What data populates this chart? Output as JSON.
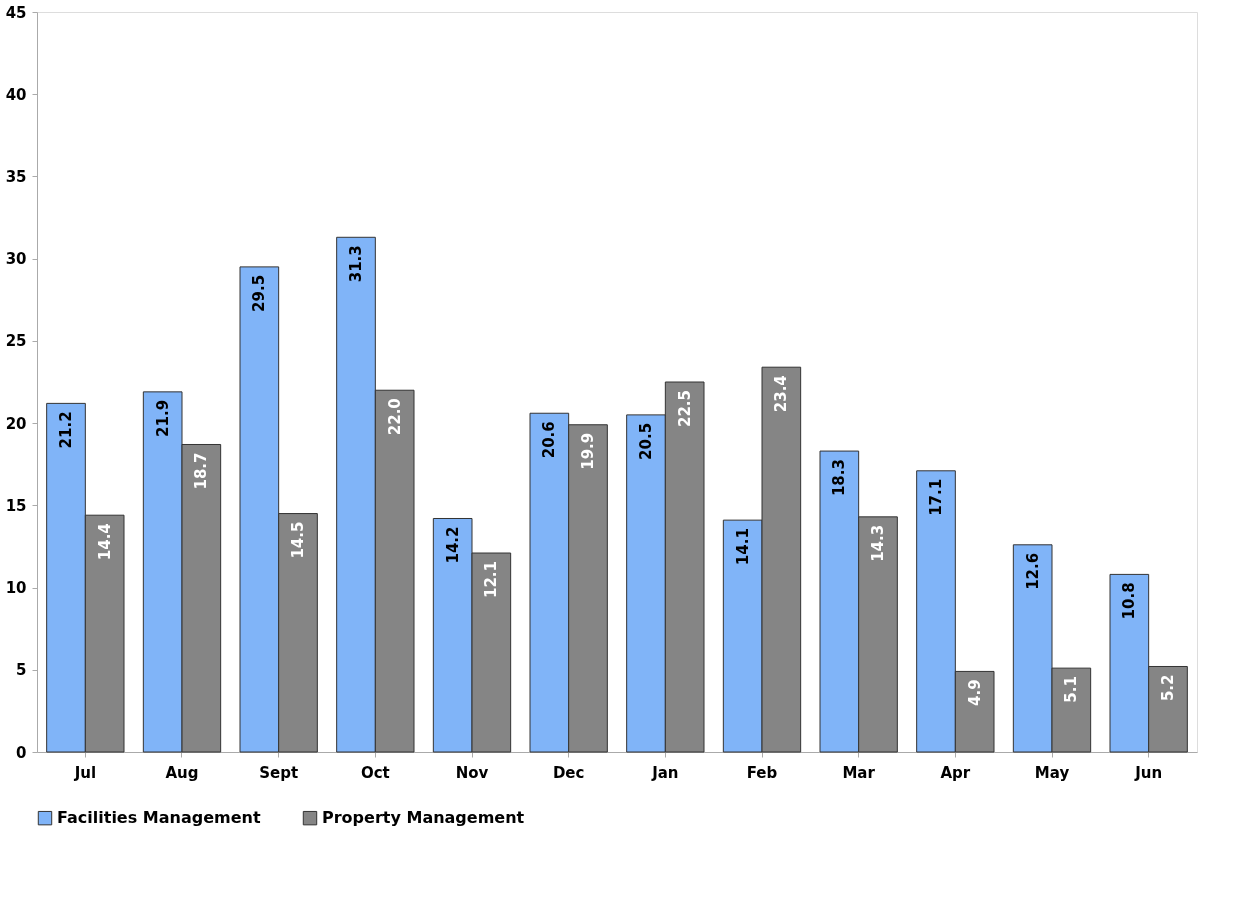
{
  "chart_data": {
    "type": "bar",
    "categories": [
      "Jul",
      "Aug",
      "Sept",
      "Oct",
      "Nov",
      "Dec",
      "Jan",
      "Feb",
      "Mar",
      "Apr",
      "May",
      "Jun"
    ],
    "series": [
      {
        "name": "Facilities Management",
        "color": "#80b4f8",
        "values": [
          21.2,
          21.9,
          29.5,
          31.3,
          14.2,
          20.6,
          20.5,
          14.1,
          18.3,
          17.1,
          12.6,
          10.8
        ]
      },
      {
        "name": "Property Management",
        "color": "#858585",
        "values": [
          14.4,
          18.7,
          14.5,
          22.0,
          12.1,
          19.9,
          22.5,
          23.4,
          14.3,
          4.9,
          5.1,
          5.2
        ]
      }
    ],
    "ylim": [
      0,
      45
    ],
    "yticks": [
      0,
      5,
      10,
      15,
      20,
      25,
      30,
      35,
      40,
      45
    ],
    "value_labels": [
      [
        "21.2",
        "21.9",
        "29.5",
        "31.3",
        "14.2",
        "20.6",
        "20.5",
        "14.1",
        "18.3",
        "17.1",
        "12.6",
        "10.8"
      ],
      [
        "14.4",
        "18.7",
        "14.5",
        "22.0",
        "12.1",
        "19.9",
        "22.5",
        "23.4",
        "14.3",
        "4.9",
        "5.1",
        "5.2"
      ]
    ],
    "legend": "bottom",
    "grid": false
  }
}
